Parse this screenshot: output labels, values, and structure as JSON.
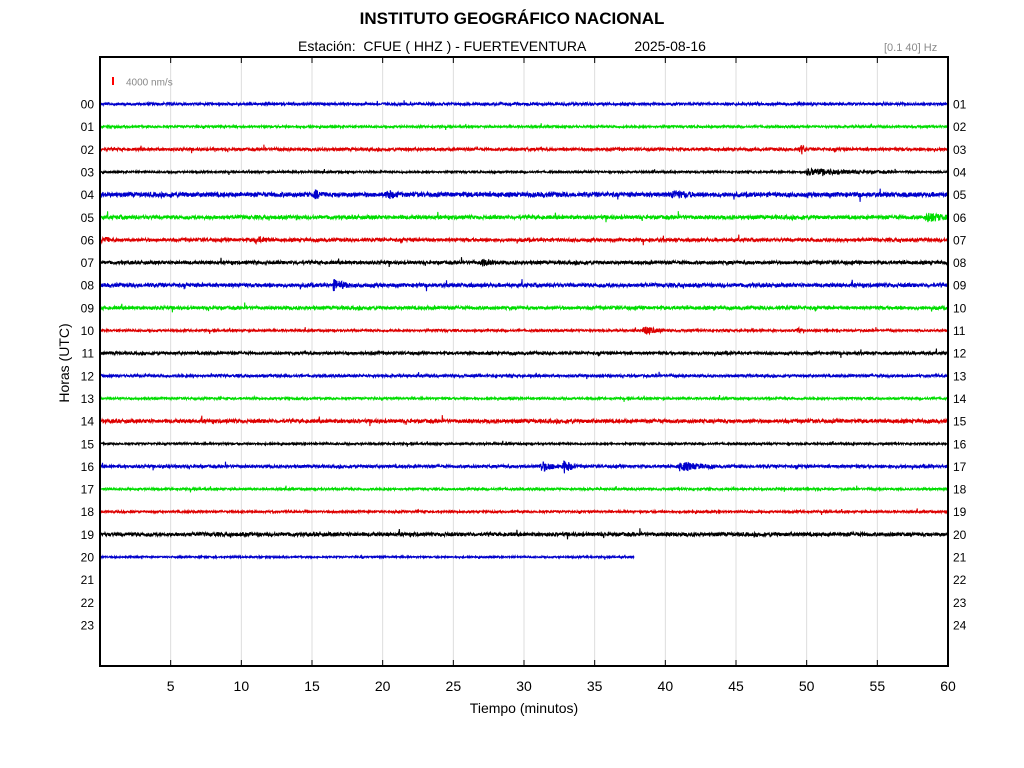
{
  "chart_data": {
    "type": "line",
    "title": "INSTITUTO GEOGRÁFICO NACIONAL",
    "station": "Estación:  CFUE ( HHZ ) - FUERTEVENTURA",
    "date": "2025-08-16",
    "filter_label": "[0.1 40] Hz",
    "scale_label": "4000 nm/s",
    "scale_color": "#ff0000",
    "xlabel": "Tiempo (minutos)",
    "ylabel": "Horas (UTC)",
    "xlim": [
      0,
      60
    ],
    "x_ticks": [
      5,
      10,
      15,
      20,
      25,
      30,
      35,
      40,
      45,
      50,
      55,
      60
    ],
    "grid": "vertical",
    "trace_colors": [
      "#0000cc",
      "#00dd00",
      "#dd0000",
      "#000000"
    ],
    "left_labels": [
      "00",
      "01",
      "02",
      "03",
      "04",
      "05",
      "06",
      "07",
      "08",
      "09",
      "10",
      "11",
      "12",
      "13",
      "14",
      "15",
      "16",
      "17",
      "18",
      "19",
      "20",
      "21",
      "22",
      "23"
    ],
    "right_labels": [
      "01",
      "02",
      "03",
      "04",
      "05",
      "06",
      "07",
      "08",
      "09",
      "10",
      "11",
      "12",
      "13",
      "14",
      "15",
      "16",
      "17",
      "18",
      "19",
      "20",
      "21",
      "22",
      "23",
      "24"
    ],
    "series": [
      {
        "hour": 0,
        "noise": 1.2,
        "end_minute": 60,
        "events": []
      },
      {
        "hour": 1,
        "noise": 1.0,
        "end_minute": 60,
        "events": []
      },
      {
        "hour": 2,
        "noise": 1.4,
        "end_minute": 60,
        "events": [
          {
            "minute": 49.6,
            "amp": 5,
            "dur": 0.4
          }
        ]
      },
      {
        "hour": 3,
        "noise": 0.9,
        "end_minute": 60,
        "events": [
          {
            "minute": 50.0,
            "amp": 3,
            "dur": 6
          }
        ]
      },
      {
        "hour": 4,
        "noise": 2.2,
        "end_minute": 60,
        "events": [
          {
            "minute": 15.2,
            "amp": 4,
            "dur": 0.6
          },
          {
            "minute": 20.3,
            "amp": 4,
            "dur": 0.8
          },
          {
            "minute": 40.5,
            "amp": 3,
            "dur": 1.5
          }
        ]
      },
      {
        "hour": 5,
        "noise": 1.8,
        "end_minute": 60,
        "events": [
          {
            "minute": 58.5,
            "amp": 5,
            "dur": 1.5
          }
        ]
      },
      {
        "hour": 6,
        "noise": 1.6,
        "end_minute": 60,
        "events": [
          {
            "minute": 0.2,
            "amp": 4,
            "dur": 0.5
          },
          {
            "minute": 11.0,
            "amp": 3,
            "dur": 1
          }
        ]
      },
      {
        "hour": 7,
        "noise": 1.6,
        "end_minute": 60,
        "events": [
          {
            "minute": 27.0,
            "amp": 3,
            "dur": 1
          }
        ]
      },
      {
        "hour": 8,
        "noise": 1.8,
        "end_minute": 60,
        "events": [
          {
            "minute": 16.5,
            "amp": 5,
            "dur": 1.2
          }
        ]
      },
      {
        "hour": 9,
        "noise": 1.6,
        "end_minute": 60,
        "events": []
      },
      {
        "hour": 10,
        "noise": 1.0,
        "end_minute": 60,
        "events": [
          {
            "minute": 38.5,
            "amp": 4,
            "dur": 1.5
          },
          {
            "minute": 49.3,
            "amp": 3,
            "dur": 0.4
          }
        ]
      },
      {
        "hour": 11,
        "noise": 1.4,
        "end_minute": 60,
        "events": []
      },
      {
        "hour": 12,
        "noise": 1.2,
        "end_minute": 60,
        "events": []
      },
      {
        "hour": 13,
        "noise": 1.0,
        "end_minute": 60,
        "events": []
      },
      {
        "hour": 14,
        "noise": 1.8,
        "end_minute": 60,
        "events": []
      },
      {
        "hour": 15,
        "noise": 0.9,
        "end_minute": 60,
        "events": []
      },
      {
        "hour": 16,
        "noise": 1.4,
        "end_minute": 60,
        "events": [
          {
            "minute": 31.2,
            "amp": 5,
            "dur": 1.2
          },
          {
            "minute": 32.8,
            "amp": 7,
            "dur": 0.8
          },
          {
            "minute": 41.0,
            "amp": 4,
            "dur": 2.5
          }
        ]
      },
      {
        "hour": 17,
        "noise": 1.0,
        "end_minute": 60,
        "events": []
      },
      {
        "hour": 18,
        "noise": 1.0,
        "end_minute": 60,
        "events": []
      },
      {
        "hour": 19,
        "noise": 1.8,
        "end_minute": 60,
        "events": []
      },
      {
        "hour": 20,
        "noise": 0.8,
        "end_minute": 37.8,
        "events": []
      }
    ]
  }
}
